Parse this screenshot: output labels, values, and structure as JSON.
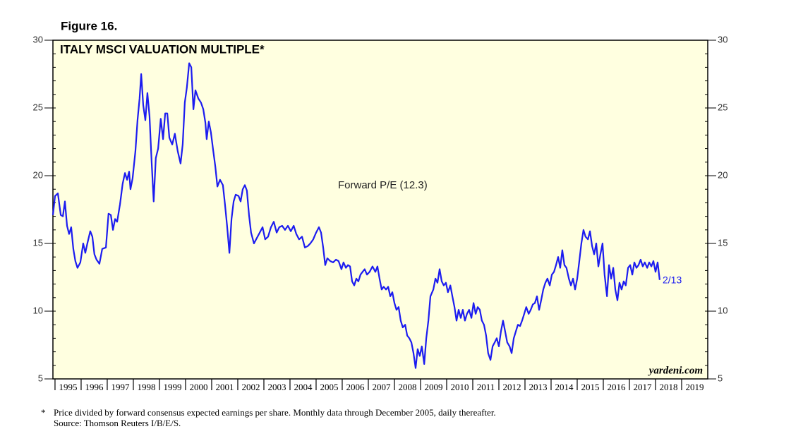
{
  "chart_data": {
    "type": "line",
    "figure_label": "Figure 16.",
    "title": "ITALY MSCI VALUATION MULTIPLE*",
    "watermark": "yardeni.com",
    "end_label": "2/13",
    "footnote_marker": "*",
    "footnote": "Price divided by forward consensus expected earnings per share. Monthly data through December 2005, daily thereafter.",
    "source": "Source: Thomson Reuters I/B/E/S.",
    "xlim": [
      1994.92,
      2020
    ],
    "xticks": [
      1995,
      1996,
      1997,
      1998,
      1999,
      2000,
      2001,
      2002,
      2003,
      2004,
      2005,
      2006,
      2007,
      2008,
      2009,
      2010,
      2011,
      2012,
      2013,
      2014,
      2015,
      2016,
      2017,
      2018,
      2019
    ],
    "ylim": [
      5,
      30
    ],
    "yticks": [
      5,
      10,
      15,
      20,
      25,
      30
    ],
    "background": "#ffffe0",
    "x": [
      1994.92,
      1995.0,
      1995.11,
      1995.22,
      1995.3,
      1995.38,
      1995.46,
      1995.54,
      1995.62,
      1995.7,
      1995.78,
      1995.86,
      1995.97,
      1996.08,
      1996.16,
      1996.24,
      1996.35,
      1996.43,
      1996.51,
      1996.59,
      1996.7,
      1996.81,
      1996.95,
      1997.05,
      1997.14,
      1997.22,
      1997.3,
      1997.38,
      1997.49,
      1997.59,
      1997.68,
      1997.76,
      1997.84,
      1997.89,
      1997.97,
      1998.08,
      1998.16,
      1998.24,
      1998.3,
      1998.38,
      1998.46,
      1998.54,
      1998.62,
      1998.7,
      1998.78,
      1998.86,
      1998.95,
      1999.05,
      1999.14,
      1999.22,
      1999.3,
      1999.38,
      1999.49,
      1999.59,
      1999.7,
      1999.81,
      1999.89,
      1999.97,
      2000.05,
      2000.14,
      2000.22,
      2000.3,
      2000.38,
      2000.49,
      2000.59,
      2000.68,
      2000.76,
      2000.81,
      2000.89,
      2000.97,
      2001.05,
      2001.14,
      2001.22,
      2001.32,
      2001.43,
      2001.51,
      2001.59,
      2001.68,
      2001.76,
      2001.84,
      2001.92,
      2002.03,
      2002.11,
      2002.19,
      2002.27,
      2002.35,
      2002.43,
      2002.51,
      2002.62,
      2002.73,
      2002.84,
      2002.95,
      2003.05,
      2003.16,
      2003.27,
      2003.38,
      2003.49,
      2003.59,
      2003.7,
      2003.81,
      2003.92,
      2004.03,
      2004.14,
      2004.24,
      2004.35,
      2004.46,
      2004.57,
      2004.68,
      2004.78,
      2004.89,
      2005.0,
      2005.11,
      2005.19,
      2005.27,
      2005.35,
      2005.43,
      2005.54,
      2005.65,
      2005.76,
      2005.86,
      2005.97,
      2006.05,
      2006.14,
      2006.22,
      2006.3,
      2006.38,
      2006.46,
      2006.54,
      2006.62,
      2006.7,
      2006.78,
      2006.86,
      2006.95,
      2007.05,
      2007.16,
      2007.27,
      2007.35,
      2007.43,
      2007.51,
      2007.59,
      2007.68,
      2007.76,
      2007.84,
      2007.92,
      2008.0,
      2008.08,
      2008.16,
      2008.24,
      2008.32,
      2008.41,
      2008.49,
      2008.57,
      2008.65,
      2008.73,
      2008.81,
      2008.89,
      2008.97,
      2009.05,
      2009.14,
      2009.22,
      2009.3,
      2009.38,
      2009.49,
      2009.57,
      2009.65,
      2009.73,
      2009.81,
      2009.89,
      2009.97,
      2010.05,
      2010.14,
      2010.22,
      2010.3,
      2010.38,
      2010.46,
      2010.54,
      2010.62,
      2010.7,
      2010.78,
      2010.86,
      2010.95,
      2011.03,
      2011.11,
      2011.19,
      2011.27,
      2011.35,
      2011.43,
      2011.51,
      2011.59,
      2011.68,
      2011.76,
      2011.84,
      2011.92,
      2012.0,
      2012.08,
      2012.16,
      2012.24,
      2012.32,
      2012.41,
      2012.49,
      2012.57,
      2012.65,
      2012.73,
      2012.81,
      2012.89,
      2012.97,
      2013.05,
      2013.14,
      2013.22,
      2013.3,
      2013.38,
      2013.46,
      2013.54,
      2013.62,
      2013.7,
      2013.78,
      2013.86,
      2013.95,
      2014.03,
      2014.11,
      2014.19,
      2014.27,
      2014.35,
      2014.43,
      2014.51,
      2014.59,
      2014.68,
      2014.76,
      2014.84,
      2014.92,
      2015.0,
      2015.08,
      2015.16,
      2015.24,
      2015.32,
      2015.41,
      2015.49,
      2015.57,
      2015.65,
      2015.73,
      2015.81,
      2015.89,
      2015.97,
      2016.05,
      2016.14,
      2016.22,
      2016.3,
      2016.38,
      2016.46,
      2016.54,
      2016.62,
      2016.7,
      2016.78,
      2016.86,
      2016.95,
      2017.03,
      2017.11,
      2017.19,
      2017.27,
      2017.35,
      2017.43,
      2017.51,
      2017.59,
      2017.68,
      2017.76,
      2017.84,
      2017.92,
      2018.0,
      2018.08,
      2018.16
    ],
    "series": [
      {
        "name": "Forward P/E (12.3)",
        "color": "#1c1cf0",
        "values": [
          17.1,
          18.5,
          18.7,
          17.1,
          17.0,
          18.1,
          16.3,
          15.7,
          16.2,
          14.6,
          13.7,
          13.2,
          13.6,
          15.0,
          14.3,
          15.0,
          15.9,
          15.5,
          14.2,
          13.8,
          13.5,
          14.6,
          14.7,
          17.2,
          17.1,
          16.0,
          16.8,
          16.6,
          17.9,
          19.4,
          20.2,
          19.7,
          20.3,
          19.0,
          19.8,
          21.8,
          24.1,
          25.7,
          27.5,
          25.2,
          24.1,
          26.1,
          24.4,
          21.0,
          18.1,
          21.3,
          22.0,
          24.2,
          22.7,
          24.6,
          24.6,
          22.8,
          22.3,
          23.1,
          21.8,
          20.9,
          22.3,
          25.4,
          26.5,
          28.3,
          28.0,
          24.9,
          26.3,
          25.7,
          25.4,
          24.9,
          23.9,
          22.7,
          24.0,
          23.2,
          22.0,
          20.7,
          19.2,
          19.7,
          19.3,
          17.9,
          16.3,
          14.3,
          16.8,
          18.1,
          18.6,
          18.5,
          18.1,
          19.0,
          19.3,
          18.9,
          17.1,
          15.8,
          15.0,
          15.4,
          15.8,
          16.2,
          15.3,
          15.5,
          16.2,
          16.6,
          15.8,
          16.2,
          16.3,
          16.0,
          16.3,
          15.9,
          16.3,
          15.7,
          15.3,
          15.5,
          14.7,
          14.8,
          15.0,
          15.3,
          15.8,
          16.2,
          15.8,
          14.7,
          13.4,
          13.9,
          13.7,
          13.6,
          13.8,
          13.7,
          13.1,
          13.6,
          13.2,
          13.4,
          13.3,
          12.2,
          11.9,
          12.4,
          12.2,
          12.7,
          12.9,
          13.1,
          12.7,
          12.9,
          13.3,
          12.9,
          13.3,
          12.4,
          11.6,
          11.8,
          11.6,
          11.8,
          11.1,
          11.4,
          10.6,
          10.1,
          10.3,
          9.3,
          8.8,
          9.0,
          8.2,
          8.0,
          7.7,
          6.9,
          5.8,
          7.2,
          6.7,
          7.4,
          6.1,
          8.0,
          9.3,
          11.1,
          11.6,
          12.4,
          12.1,
          13.1,
          12.2,
          11.9,
          12.1,
          11.4,
          11.9,
          11.1,
          10.3,
          9.3,
          10.1,
          9.5,
          10.1,
          9.3,
          9.8,
          10.1,
          9.5,
          10.6,
          9.8,
          10.3,
          10.1,
          9.3,
          9.0,
          8.2,
          6.9,
          6.4,
          7.4,
          7.7,
          8.0,
          7.4,
          8.5,
          9.3,
          8.5,
          7.7,
          7.4,
          6.9,
          8.0,
          8.5,
          9.0,
          8.9,
          9.3,
          9.8,
          10.3,
          9.8,
          10.1,
          10.5,
          10.6,
          11.1,
          10.1,
          10.8,
          11.6,
          12.1,
          12.4,
          11.9,
          12.7,
          12.9,
          13.4,
          14.0,
          13.2,
          14.5,
          13.4,
          13.2,
          12.4,
          11.9,
          12.4,
          11.6,
          12.4,
          13.7,
          15.0,
          16.0,
          15.5,
          15.3,
          15.9,
          14.8,
          14.2,
          15.0,
          13.3,
          14.2,
          15.0,
          12.7,
          11.1,
          13.4,
          12.4,
          13.2,
          11.6,
          10.8,
          12.1,
          11.6,
          12.2,
          11.9,
          13.2,
          13.4,
          12.7,
          13.6,
          13.2,
          13.4,
          13.8,
          13.3,
          13.6,
          13.2,
          13.6,
          13.3,
          13.7,
          12.9,
          13.6,
          12.3
        ]
      }
    ]
  }
}
